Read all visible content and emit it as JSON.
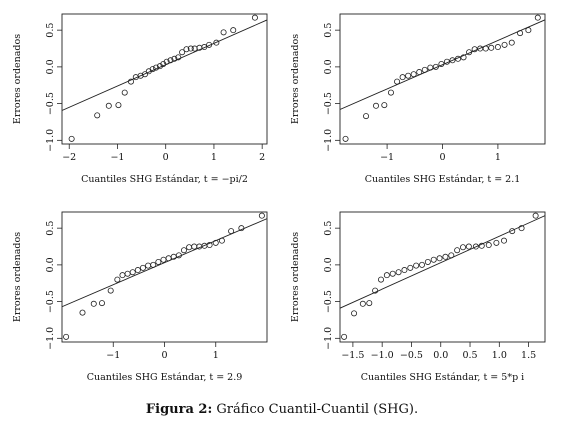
{
  "caption": {
    "label": "Figura 2:",
    "text": "Gráfico Cuantil-Cuantil (SHG)."
  },
  "chart_data": [
    {
      "type": "scatter",
      "title": "",
      "xlabel": "Cuantiles SHG Estándar, t = −pi/2",
      "ylabel": "Errores ordenados",
      "xlim": [
        -2.15,
        2.1
      ],
      "ylim": [
        -1.05,
        0.72
      ],
      "xticks": [
        -2,
        -1,
        0,
        1,
        2
      ],
      "xtick_labels": [
        "−2",
        "−1",
        "0",
        "1",
        "2"
      ],
      "yticks": [
        -1.0,
        -0.5,
        0.0,
        0.5
      ],
      "ytick_labels": [
        "−1.0",
        "−0.5",
        "0.0",
        "0.5"
      ],
      "points": {
        "x": [
          -1.95,
          -1.42,
          -1.18,
          -0.98,
          -0.85,
          -0.72,
          -0.62,
          -0.52,
          -0.43,
          -0.35,
          -0.27,
          -0.2,
          -0.12,
          -0.05,
          0.02,
          0.1,
          0.18,
          0.26,
          0.34,
          0.43,
          0.52,
          0.6,
          0.7,
          0.8,
          0.9,
          1.05,
          1.2,
          1.4,
          1.85
        ],
        "y": [
          -0.98,
          -0.66,
          -0.53,
          -0.52,
          -0.35,
          -0.2,
          -0.14,
          -0.12,
          -0.1,
          -0.06,
          -0.03,
          -0.01,
          0.01,
          0.04,
          0.07,
          0.09,
          0.11,
          0.13,
          0.2,
          0.24,
          0.25,
          0.25,
          0.26,
          0.27,
          0.3,
          0.33,
          0.47,
          0.5,
          0.67
        ]
      },
      "reference_line": {
        "intercept": 0.03,
        "slope": 0.29
      }
    },
    {
      "type": "scatter",
      "title": "",
      "xlabel": "Cuantiles SHG Estándar, t = 2.1",
      "ylabel": "Errores ordenados",
      "xlim": [
        -1.85,
        1.85
      ],
      "ylim": [
        -1.05,
        0.72
      ],
      "xticks": [
        -1,
        0,
        1
      ],
      "xtick_labels": [
        "−1",
        "0",
        "1"
      ],
      "yticks": [
        -1.0,
        -0.5,
        0.0,
        0.5
      ],
      "ytick_labels": [
        "−1.0",
        "−0.5",
        "0.0",
        "0.5"
      ],
      "points": {
        "x": [
          -1.75,
          -1.38,
          -1.2,
          -1.05,
          -0.93,
          -0.82,
          -0.72,
          -0.62,
          -0.52,
          -0.42,
          -0.32,
          -0.22,
          -0.12,
          -0.02,
          0.08,
          0.18,
          0.28,
          0.38,
          0.48,
          0.58,
          0.68,
          0.78,
          0.88,
          1.0,
          1.12,
          1.25,
          1.4,
          1.55,
          1.72
        ],
        "y": [
          -0.98,
          -0.67,
          -0.53,
          -0.52,
          -0.35,
          -0.2,
          -0.14,
          -0.12,
          -0.1,
          -0.07,
          -0.04,
          -0.01,
          0.0,
          0.04,
          0.07,
          0.09,
          0.11,
          0.13,
          0.2,
          0.24,
          0.25,
          0.25,
          0.26,
          0.27,
          0.3,
          0.33,
          0.46,
          0.5,
          0.67
        ]
      },
      "reference_line": {
        "intercept": 0.03,
        "slope": 0.33
      }
    },
    {
      "type": "scatter",
      "title": "",
      "xlabel": "Cuantiles SHG Estándar, t = 2.9",
      "ylabel": "Errores ordenados",
      "xlim": [
        -2.0,
        2.0
      ],
      "ylim": [
        -1.05,
        0.72
      ],
      "xticks": [
        -1,
        0,
        1
      ],
      "xtick_labels": [
        "−1",
        "0",
        "1"
      ],
      "yticks": [
        -1.0,
        -0.5,
        0.0,
        0.5
      ],
      "ytick_labels": [
        "−1.0",
        "−0.5",
        "0.0",
        "0.5"
      ],
      "points": {
        "x": [
          -1.92,
          -1.6,
          -1.38,
          -1.22,
          -1.05,
          -0.92,
          -0.82,
          -0.72,
          -0.62,
          -0.52,
          -0.42,
          -0.32,
          -0.22,
          -0.12,
          -0.02,
          0.08,
          0.18,
          0.28,
          0.38,
          0.48,
          0.58,
          0.68,
          0.78,
          0.88,
          1.0,
          1.12,
          1.3,
          1.5,
          1.9
        ],
        "y": [
          -0.98,
          -0.65,
          -0.53,
          -0.52,
          -0.35,
          -0.2,
          -0.14,
          -0.12,
          -0.1,
          -0.07,
          -0.04,
          -0.01,
          0.0,
          0.04,
          0.07,
          0.09,
          0.11,
          0.13,
          0.2,
          0.24,
          0.25,
          0.25,
          0.26,
          0.27,
          0.3,
          0.33,
          0.46,
          0.5,
          0.67
        ]
      },
      "reference_line": {
        "intercept": 0.03,
        "slope": 0.3
      }
    },
    {
      "type": "scatter",
      "title": "",
      "xlabel": "Cuantiles SHG Estándar, t = 5*p i",
      "ylabel": "Errores ordenados",
      "xlim": [
        -1.72,
        1.78
      ],
      "ylim": [
        -1.05,
        0.72
      ],
      "xticks": [
        -1.5,
        -1.0,
        -0.5,
        0.0,
        0.5,
        1.0,
        1.5
      ],
      "xtick_labels": [
        "−1.5",
        "−1.0",
        "−0.5",
        "0.0",
        "0.5",
        "1.0",
        "1.5"
      ],
      "yticks": [
        -1.0,
        -0.5,
        0.0,
        0.5
      ],
      "ytick_labels": [
        "−1.0",
        "−0.5",
        "0.0",
        "0.5"
      ],
      "points": {
        "x": [
          -1.65,
          -1.48,
          -1.33,
          -1.22,
          -1.12,
          -1.02,
          -0.92,
          -0.82,
          -0.72,
          -0.62,
          -0.52,
          -0.42,
          -0.32,
          -0.22,
          -0.12,
          -0.02,
          0.08,
          0.18,
          0.28,
          0.38,
          0.48,
          0.6,
          0.7,
          0.82,
          0.95,
          1.08,
          1.22,
          1.38,
          1.62
        ],
        "y": [
          -0.98,
          -0.66,
          -0.53,
          -0.52,
          -0.35,
          -0.2,
          -0.14,
          -0.12,
          -0.1,
          -0.07,
          -0.04,
          -0.01,
          0.0,
          0.04,
          0.07,
          0.09,
          0.11,
          0.13,
          0.2,
          0.24,
          0.25,
          0.25,
          0.26,
          0.27,
          0.3,
          0.33,
          0.46,
          0.5,
          0.67
        ]
      },
      "reference_line": {
        "intercept": 0.03,
        "slope": 0.36
      }
    }
  ]
}
